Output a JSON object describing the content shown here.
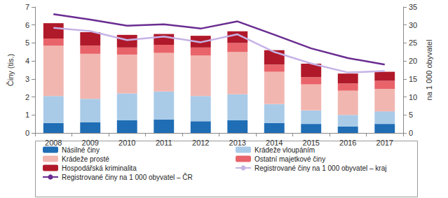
{
  "chart_data": {
    "type": "bar",
    "stacked": true,
    "grid": false,
    "legend": "bottom",
    "y_label": "Činy (tis.)",
    "y2_label": "na 1 000 obyvatel",
    "categories": [
      "2008",
      "2009",
      "2010",
      "2011",
      "2012",
      "2013",
      "2014",
      "2015",
      "2016",
      "2017"
    ],
    "ylim": [
      0,
      7
    ],
    "yticks": [
      0,
      1,
      2,
      3,
      4,
      5,
      6,
      7
    ],
    "y2lim": [
      0,
      35
    ],
    "y2ticks": [
      0,
      5,
      10,
      15,
      20,
      25,
      30,
      35
    ],
    "series": [
      {
        "name": "Násilné činy",
        "type": "bar",
        "color": "#1f6db5",
        "values": [
          0.55,
          0.6,
          0.7,
          0.75,
          0.65,
          0.7,
          0.55,
          0.5,
          0.35,
          0.5
        ]
      },
      {
        "name": "Krádeže vloupáním",
        "type": "bar",
        "color": "#a9cbe8",
        "values": [
          1.5,
          1.3,
          1.5,
          1.55,
          1.4,
          1.45,
          1.05,
          0.75,
          0.65,
          0.7
        ]
      },
      {
        "name": "Krádeže prosté",
        "type": "bar",
        "color": "#f2b6b0",
        "values": [
          2.8,
          2.5,
          2.15,
          2.15,
          2.25,
          2.35,
          1.8,
          1.45,
          1.35,
          1.25
        ]
      },
      {
        "name": "Ostatní majetkové činy",
        "type": "bar",
        "color": "#e8646a",
        "values": [
          0.4,
          0.45,
          0.4,
          0.45,
          0.45,
          0.5,
          0.4,
          0.4,
          0.4,
          0.45
        ]
      },
      {
        "name": "Hospodářská kriminalita",
        "type": "bar",
        "color": "#b0192a",
        "values": [
          0.85,
          0.75,
          0.7,
          0.6,
          0.65,
          0.65,
          0.8,
          0.75,
          0.55,
          0.5
        ]
      },
      {
        "name": "Registrované činy na 1 000 obyvatel – kraj",
        "type": "line",
        "axis": "y2",
        "color": "#c6b3e6",
        "values": [
          29.2,
          28.3,
          25.8,
          26.8,
          25.2,
          27.4,
          22.5,
          19.3,
          16.8,
          17.2
        ]
      },
      {
        "name": "Registrované činy na 1 000 obyvatel – ČR",
        "type": "line",
        "axis": "y2",
        "color": "#6a2c91",
        "values": [
          33,
          31.5,
          29.8,
          30.2,
          29,
          31,
          27.3,
          23.5,
          20.8,
          19
        ]
      }
    ]
  }
}
